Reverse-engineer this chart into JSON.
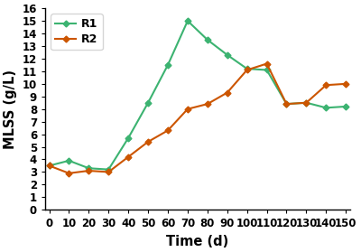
{
  "R1_x": [
    0,
    10,
    20,
    30,
    40,
    50,
    60,
    70,
    80,
    90,
    100,
    110,
    120,
    130,
    140,
    150
  ],
  "R1_y": [
    3.5,
    3.9,
    3.3,
    3.2,
    5.7,
    8.5,
    11.5,
    15.0,
    13.5,
    12.3,
    11.2,
    11.1,
    8.4,
    8.5,
    8.1,
    8.2
  ],
  "R2_x": [
    0,
    10,
    20,
    30,
    40,
    50,
    60,
    70,
    80,
    90,
    100,
    110,
    120,
    130,
    140,
    150
  ],
  "R2_y": [
    3.5,
    2.9,
    3.1,
    3.0,
    4.2,
    5.4,
    6.3,
    8.0,
    8.4,
    9.3,
    11.1,
    11.6,
    8.4,
    8.5,
    9.9,
    10.0
  ],
  "R1_color": "#3cb371",
  "R2_color": "#cc5500",
  "xlabel": "Time (d)",
  "ylabel": "MLSS (g/L)",
  "xlim": [
    -2,
    152
  ],
  "ylim": [
    0,
    16
  ],
  "xticks": [
    0,
    10,
    20,
    30,
    40,
    50,
    60,
    70,
    80,
    90,
    100,
    110,
    120,
    130,
    140,
    150
  ],
  "yticks": [
    0,
    1,
    2,
    3,
    4,
    5,
    6,
    7,
    8,
    9,
    10,
    11,
    12,
    13,
    14,
    15,
    16
  ],
  "legend_labels": [
    "R1",
    "R2"
  ],
  "marker": "D",
  "markersize": 3.5,
  "linewidth": 1.5,
  "tick_fontsize": 8.5,
  "label_fontsize": 10.5
}
